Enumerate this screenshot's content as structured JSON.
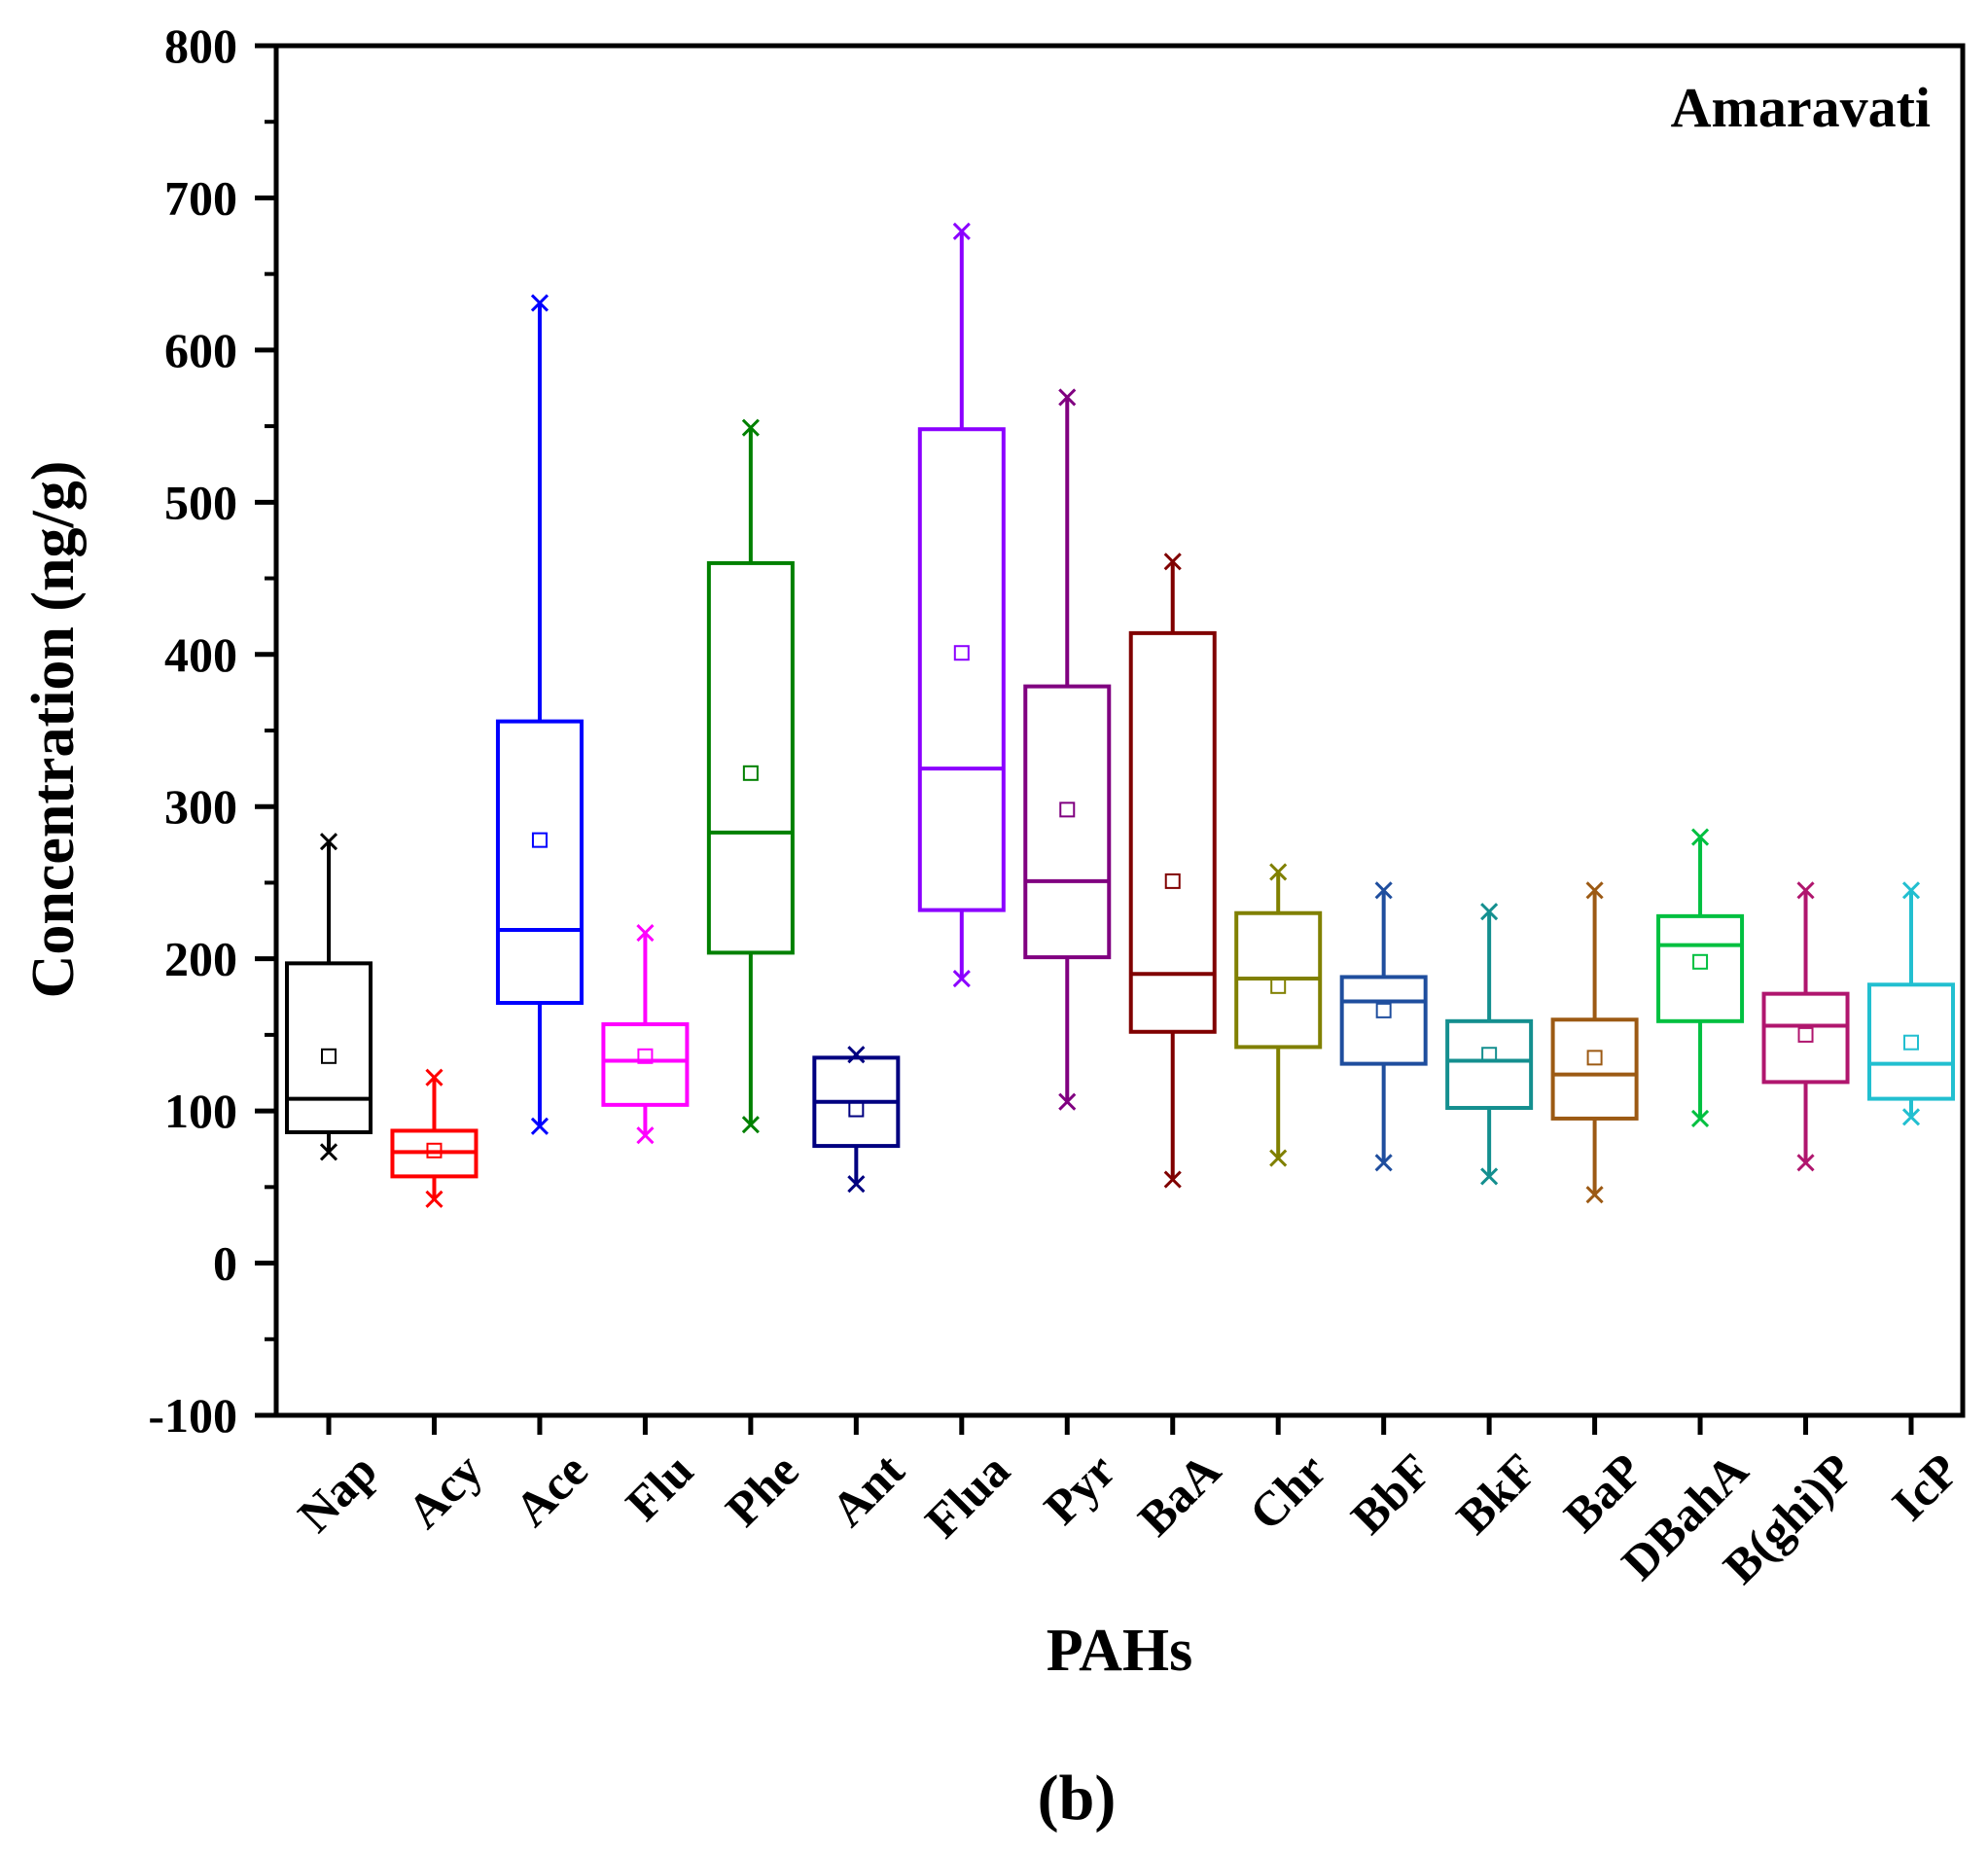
{
  "chart_data": {
    "type": "boxplot",
    "title": "",
    "annotation": "Amaravati",
    "caption": "(b)",
    "xlabel": "PAHs",
    "ylabel": "Concentration (ng/g)",
    "ylim": [
      -100,
      800
    ],
    "yticks": [
      -100,
      0,
      100,
      200,
      300,
      400,
      500,
      600,
      700,
      800
    ],
    "grid": false,
    "series": [
      {
        "name": "Nap",
        "color": "#000000",
        "min": 73,
        "q1": 86,
        "median": 108,
        "q3": 197,
        "max": 277,
        "mean": 136
      },
      {
        "name": "Acy",
        "color": "#ff0000",
        "min": 42,
        "q1": 57,
        "median": 73,
        "q3": 87,
        "max": 122,
        "mean": 74
      },
      {
        "name": "Ace",
        "color": "#0000ff",
        "min": 90,
        "q1": 171,
        "median": 219,
        "q3": 356,
        "max": 631,
        "mean": 278
      },
      {
        "name": "Flu",
        "color": "#ff00ff",
        "min": 84,
        "q1": 104,
        "median": 133,
        "q3": 157,
        "max": 217,
        "mean": 136
      },
      {
        "name": "Phe",
        "color": "#008000",
        "min": 91,
        "q1": 204,
        "median": 283,
        "q3": 460,
        "max": 549,
        "mean": 322
      },
      {
        "name": "Ant",
        "color": "#000080",
        "min": 52,
        "q1": 77,
        "median": 106,
        "q3": 135,
        "max": 137,
        "mean": 101
      },
      {
        "name": "Flua",
        "color": "#8b00ff",
        "min": 187,
        "q1": 232,
        "median": 325,
        "q3": 548,
        "max": 678,
        "mean": 401
      },
      {
        "name": "Pyr",
        "color": "#800080",
        "min": 106,
        "q1": 201,
        "median": 251,
        "q3": 379,
        "max": 569,
        "mean": 298
      },
      {
        "name": "BaA",
        "color": "#800000",
        "min": 55,
        "q1": 152,
        "median": 190,
        "q3": 414,
        "max": 461,
        "mean": 251
      },
      {
        "name": "Chr",
        "color": "#808000",
        "min": 69,
        "q1": 142,
        "median": 187,
        "q3": 230,
        "max": 257,
        "mean": 182
      },
      {
        "name": "BbF",
        "color": "#1f4e9e",
        "min": 66,
        "q1": 131,
        "median": 172,
        "q3": 188,
        "max": 245,
        "mean": 166
      },
      {
        "name": "BkF",
        "color": "#148f8f",
        "min": 57,
        "q1": 102,
        "median": 133,
        "q3": 159,
        "max": 231,
        "mean": 137
      },
      {
        "name": "BaP",
        "color": "#9c5a14",
        "min": 45,
        "q1": 95,
        "median": 124,
        "q3": 160,
        "max": 245,
        "mean": 135
      },
      {
        "name": "DBahA",
        "color": "#00c040",
        "min": 95,
        "q1": 159,
        "median": 209,
        "q3": 228,
        "max": 280,
        "mean": 198
      },
      {
        "name": "B(ghi)P",
        "color": "#b0166e",
        "min": 66,
        "q1": 119,
        "median": 156,
        "q3": 177,
        "max": 245,
        "mean": 150
      },
      {
        "name": "IcP",
        "color": "#22bfd0",
        "min": 96,
        "q1": 108,
        "median": 131,
        "q3": 183,
        "max": 245,
        "mean": 145
      }
    ]
  }
}
